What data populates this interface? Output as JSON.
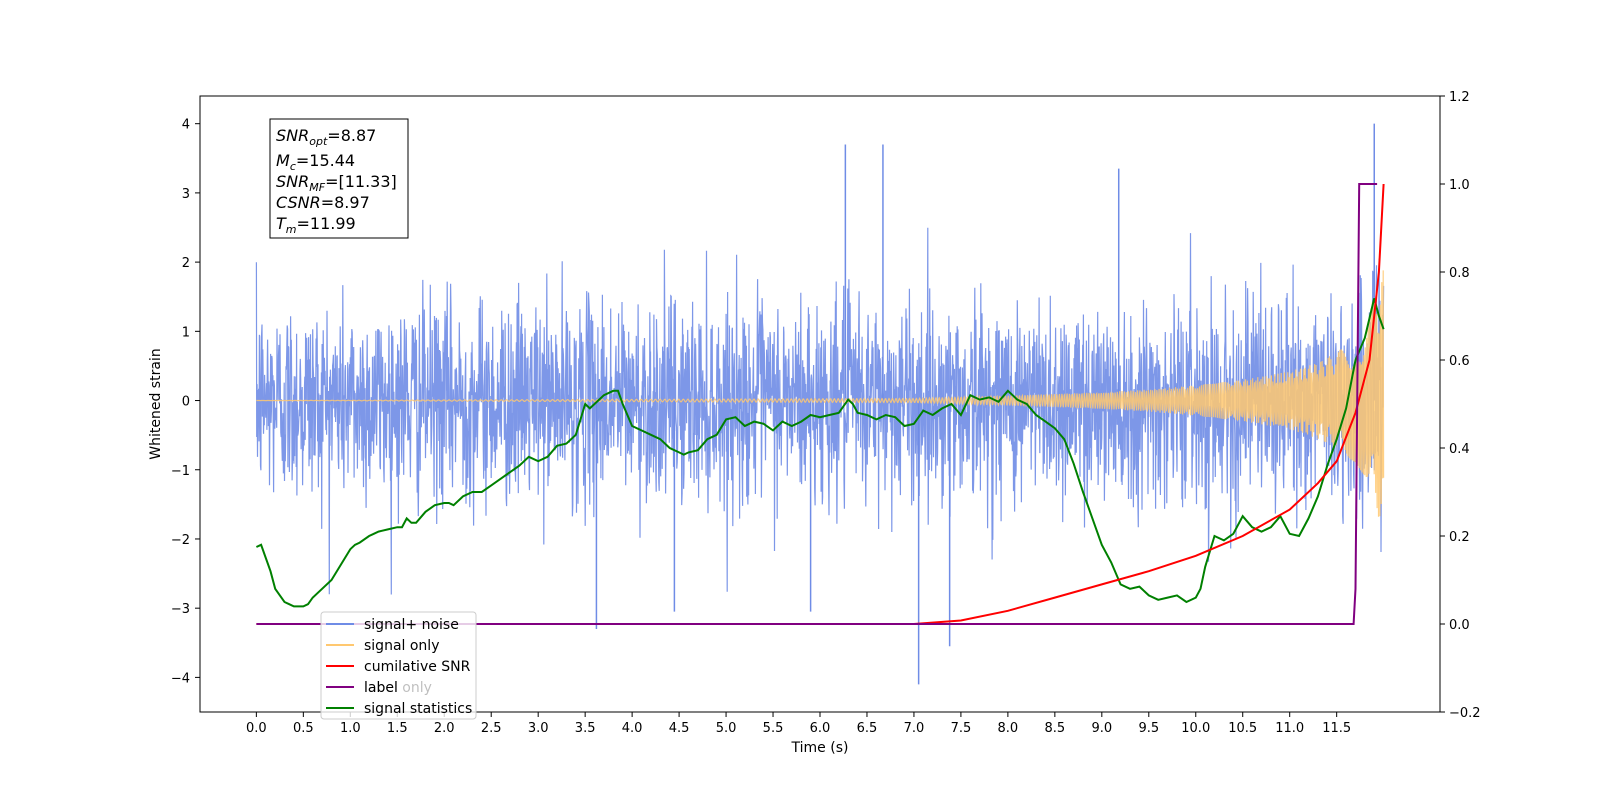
{
  "chart_data": {
    "type": "line",
    "xlabel": "Time (s)",
    "ylabel": "Whitened strain",
    "xlim": [
      -0.6,
      12.6
    ],
    "ylim": [
      -4.5,
      4.4
    ],
    "y2lim": [
      -0.2,
      1.2
    ],
    "x_ticks": [
      "0.0",
      "0.5",
      "1.0",
      "1.5",
      "2.0",
      "2.5",
      "3.0",
      "3.5",
      "4.0",
      "4.5",
      "5.0",
      "5.5",
      "6.0",
      "6.5",
      "7.0",
      "7.5",
      "8.0",
      "8.5",
      "9.0",
      "9.5",
      "10.0",
      "10.5",
      "11.0",
      "11.5"
    ],
    "y_ticks": [
      "4",
      "3",
      "2",
      "1",
      "0",
      "−1",
      "−2",
      "−3",
      "−4"
    ],
    "y2_ticks": [
      "1.2",
      "1.0",
      "0.8",
      "0.6",
      "0.4",
      "0.2",
      "0.0",
      "−0.2"
    ],
    "annotation": [
      {
        "var": "SNR",
        "sub": "opt",
        "text": "=8.87"
      },
      {
        "var": "M",
        "sub": "c",
        "text": "=15.44"
      },
      {
        "var": "SNR",
        "sub": "MF",
        "text": "=[11.33]"
      },
      {
        "var": "CSNR",
        "sub": "",
        "text": "=8.97"
      },
      {
        "var": "T",
        "sub": "m",
        "text": "=11.99"
      }
    ],
    "legend": {
      "placement": "lower-left",
      "entries": [
        {
          "label": "signal+ noise",
          "color": "#6f8ce6"
        },
        {
          "label": "signal only",
          "color": "#ffc870"
        },
        {
          "label": "cumilative SNR",
          "color": "#ff0000"
        },
        {
          "label": "label",
          "color": "#800080"
        },
        {
          "label": "signal statistics",
          "color": "#008000"
        }
      ],
      "hidden_label": "label only"
    },
    "series": [
      {
        "name": "signal+ noise",
        "axis": "left",
        "color": "#6f8ce6",
        "x_range": [
          0.0,
          12.0
        ],
        "envelope_typical": [
          -1.6,
          1.6
        ],
        "peaks": [
          {
            "x": 6.27,
            "y": 3.7
          },
          {
            "x": 6.67,
            "y": 3.7
          },
          {
            "x": 9.18,
            "y": 3.35
          },
          {
            "x": 11.9,
            "y": 4.0
          },
          {
            "x": 7.05,
            "y": -4.1
          },
          {
            "x": 7.38,
            "y": -3.55
          },
          {
            "x": 3.62,
            "y": -3.3
          },
          {
            "x": 5.9,
            "y": -3.05
          },
          {
            "x": 4.45,
            "y": -3.05
          }
        ]
      },
      {
        "name": "signal only",
        "axis": "left",
        "color": "#ffc870",
        "x_range": [
          0.0,
          12.0
        ],
        "amplitude": {
          "x": [
            0,
            7.0,
            8.0,
            9.0,
            9.5,
            10.0,
            10.5,
            11.0,
            11.3,
            11.5,
            11.7,
            11.8,
            11.9,
            12.0
          ],
          "y": [
            0.0,
            0.03,
            0.07,
            0.12,
            0.16,
            0.22,
            0.3,
            0.42,
            0.55,
            0.7,
            0.9,
            1.1,
            1.5,
            1.9
          ]
        }
      },
      {
        "name": "cumilative SNR",
        "axis": "right",
        "color": "#ff0000",
        "x": [
          0,
          7.0,
          7.5,
          8.0,
          8.5,
          9.0,
          9.5,
          10.0,
          10.5,
          11.0,
          11.3,
          11.5,
          11.7,
          11.85,
          11.95,
          12.0
        ],
        "values": [
          0.0,
          0.0,
          0.008,
          0.03,
          0.06,
          0.09,
          0.12,
          0.155,
          0.2,
          0.26,
          0.32,
          0.37,
          0.48,
          0.6,
          0.8,
          1.0
        ]
      },
      {
        "name": "label",
        "axis": "right",
        "color": "#800080",
        "x": [
          0,
          11.68,
          11.7,
          11.74,
          11.93
        ],
        "values": [
          0.0,
          0.0,
          0.08,
          1.0,
          1.0
        ]
      },
      {
        "name": "signal statistics",
        "axis": "right",
        "color": "#008000",
        "x": [
          0.0,
          0.05,
          0.1,
          0.15,
          0.2,
          0.3,
          0.35,
          0.4,
          0.5,
          0.55,
          0.6,
          0.7,
          0.8,
          0.9,
          1.0,
          1.05,
          1.1,
          1.2,
          1.25,
          1.3,
          1.4,
          1.5,
          1.55,
          1.6,
          1.65,
          1.7,
          1.8,
          1.9,
          2.0,
          2.05,
          2.1,
          2.2,
          2.3,
          2.4,
          2.5,
          2.6,
          2.7,
          2.8,
          2.9,
          3.0,
          3.1,
          3.2,
          3.3,
          3.4,
          3.5,
          3.55,
          3.6,
          3.7,
          3.8,
          3.85,
          3.9,
          4.0,
          4.1,
          4.2,
          4.3,
          4.4,
          4.5,
          4.55,
          4.6,
          4.7,
          4.8,
          4.9,
          5.0,
          5.1,
          5.2,
          5.3,
          5.4,
          5.5,
          5.6,
          5.7,
          5.8,
          5.9,
          6.0,
          6.1,
          6.2,
          6.3,
          6.35,
          6.4,
          6.5,
          6.6,
          6.7,
          6.8,
          6.9,
          7.0,
          7.1,
          7.2,
          7.3,
          7.4,
          7.5,
          7.6,
          7.7,
          7.8,
          7.9,
          8.0,
          8.05,
          8.1,
          8.2,
          8.3,
          8.4,
          8.5,
          8.6,
          8.7,
          8.8,
          8.9,
          9.0,
          9.1,
          9.2,
          9.3,
          9.4,
          9.5,
          9.6,
          9.7,
          9.8,
          9.9,
          10.0,
          10.05,
          10.1,
          10.2,
          10.3,
          10.4,
          10.5,
          10.6,
          10.7,
          10.8,
          10.9,
          11.0,
          11.1,
          11.2,
          11.3,
          11.4,
          11.5,
          11.6,
          11.7,
          11.8,
          11.9,
          11.95,
          12.0
        ],
        "values": [
          0.175,
          0.18,
          0.15,
          0.12,
          0.08,
          0.05,
          0.045,
          0.04,
          0.04,
          0.045,
          0.06,
          0.08,
          0.1,
          0.135,
          0.17,
          0.18,
          0.185,
          0.2,
          0.205,
          0.21,
          0.215,
          0.22,
          0.22,
          0.24,
          0.23,
          0.23,
          0.255,
          0.27,
          0.275,
          0.275,
          0.27,
          0.29,
          0.3,
          0.3,
          0.315,
          0.33,
          0.345,
          0.36,
          0.38,
          0.37,
          0.38,
          0.405,
          0.41,
          0.43,
          0.5,
          0.49,
          0.5,
          0.52,
          0.53,
          0.53,
          0.5,
          0.45,
          0.44,
          0.43,
          0.42,
          0.4,
          0.39,
          0.385,
          0.39,
          0.395,
          0.42,
          0.43,
          0.465,
          0.47,
          0.45,
          0.46,
          0.455,
          0.44,
          0.46,
          0.45,
          0.46,
          0.475,
          0.47,
          0.475,
          0.48,
          0.51,
          0.5,
          0.48,
          0.475,
          0.465,
          0.475,
          0.47,
          0.45,
          0.455,
          0.485,
          0.475,
          0.49,
          0.5,
          0.475,
          0.52,
          0.51,
          0.515,
          0.505,
          0.53,
          0.52,
          0.51,
          0.5,
          0.475,
          0.46,
          0.445,
          0.42,
          0.365,
          0.3,
          0.24,
          0.18,
          0.14,
          0.09,
          0.08,
          0.085,
          0.065,
          0.055,
          0.06,
          0.065,
          0.05,
          0.06,
          0.08,
          0.13,
          0.2,
          0.19,
          0.205,
          0.245,
          0.22,
          0.21,
          0.22,
          0.245,
          0.205,
          0.2,
          0.24,
          0.29,
          0.36,
          0.42,
          0.49,
          0.6,
          0.65,
          0.74,
          0.7,
          0.67
        ]
      }
    ]
  }
}
